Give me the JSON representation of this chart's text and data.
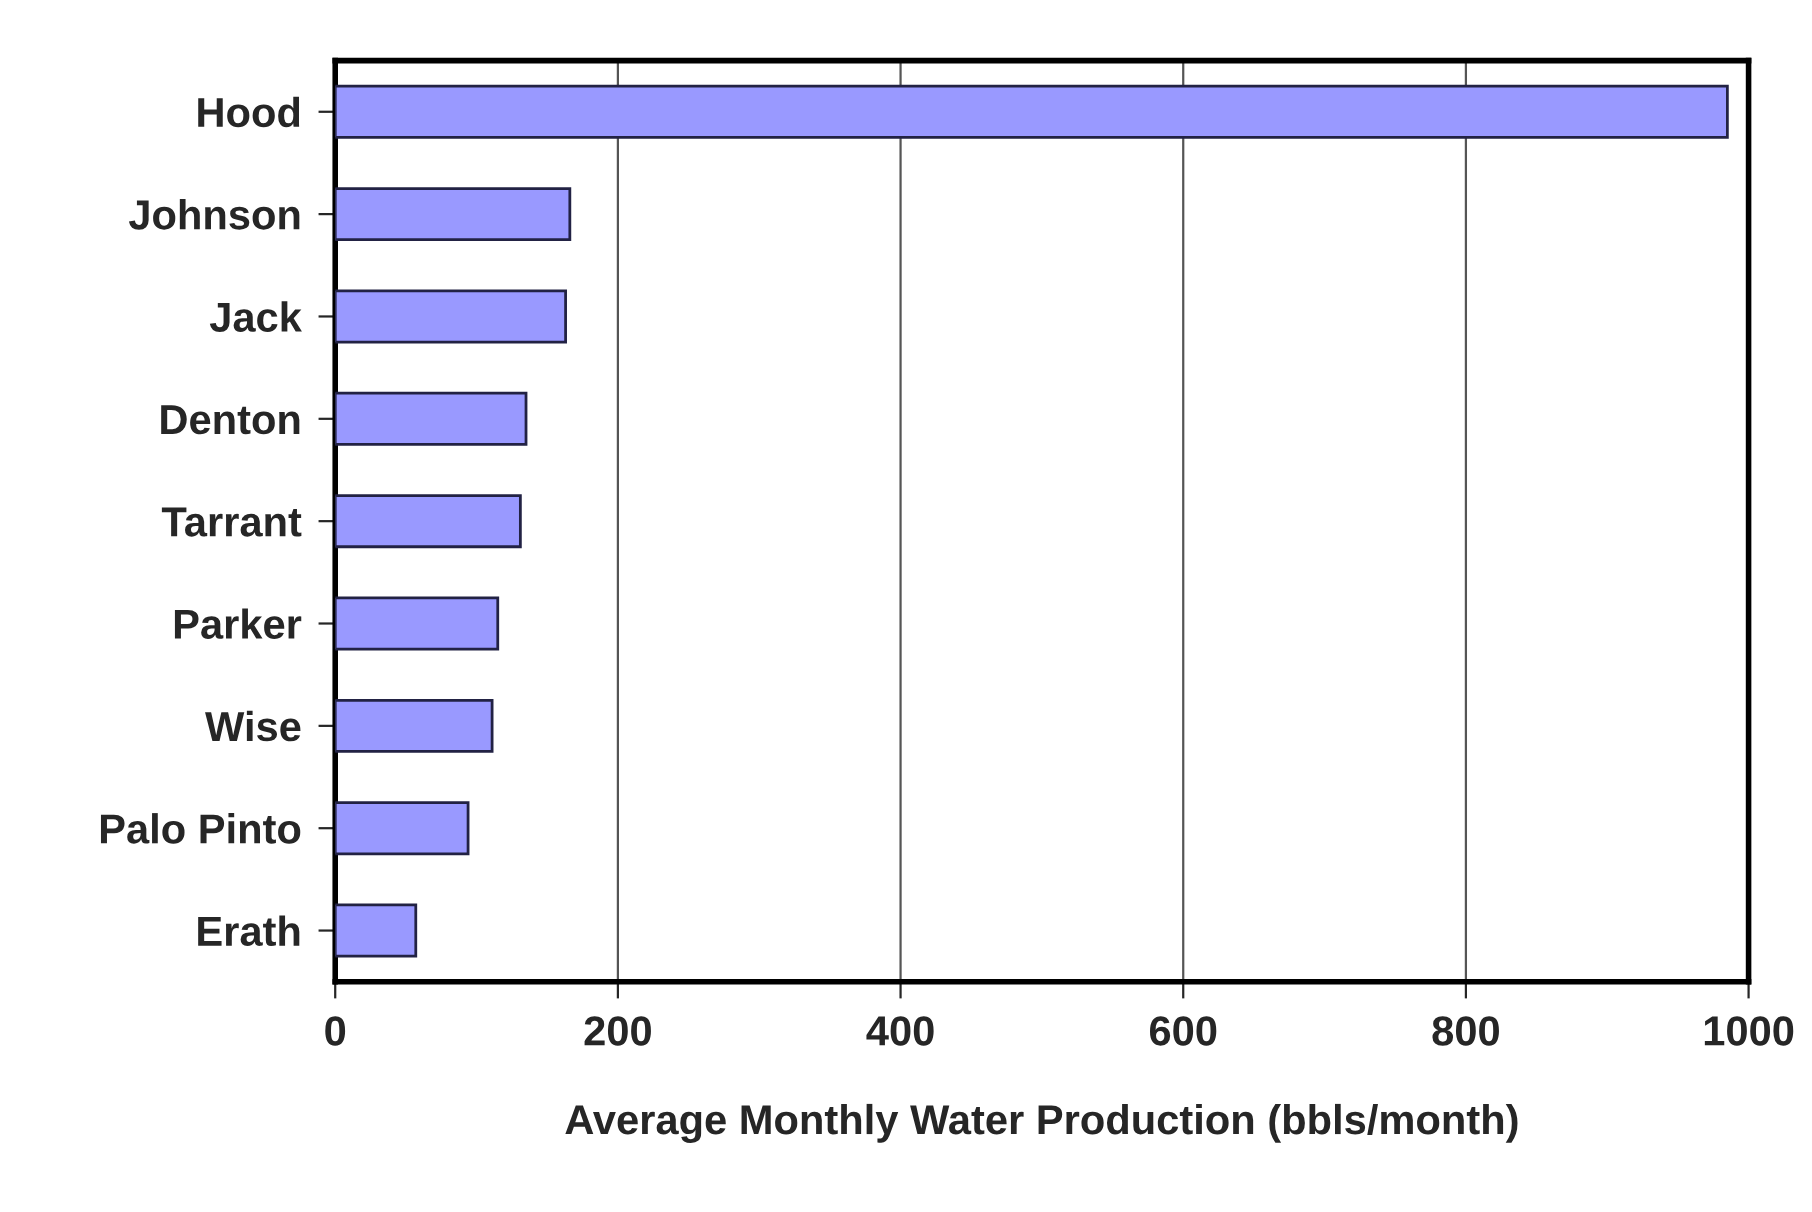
{
  "chart_data": {
    "type": "bar",
    "orientation": "horizontal",
    "xlabel": "Average Monthly Water Production (bbls/month)",
    "categories": [
      "Hood",
      "Johnson",
      "Jack",
      "Denton",
      "Tarrant",
      "Parker",
      "Wise",
      "Palo Pinto",
      "Erath"
    ],
    "values": [
      985,
      166,
      163,
      135,
      131,
      115,
      111,
      94,
      57
    ],
    "color": "#9999ff",
    "xlim": [
      0,
      1000
    ],
    "xticks": [
      0,
      200,
      400,
      600,
      800,
      1000
    ],
    "grid": "x"
  }
}
